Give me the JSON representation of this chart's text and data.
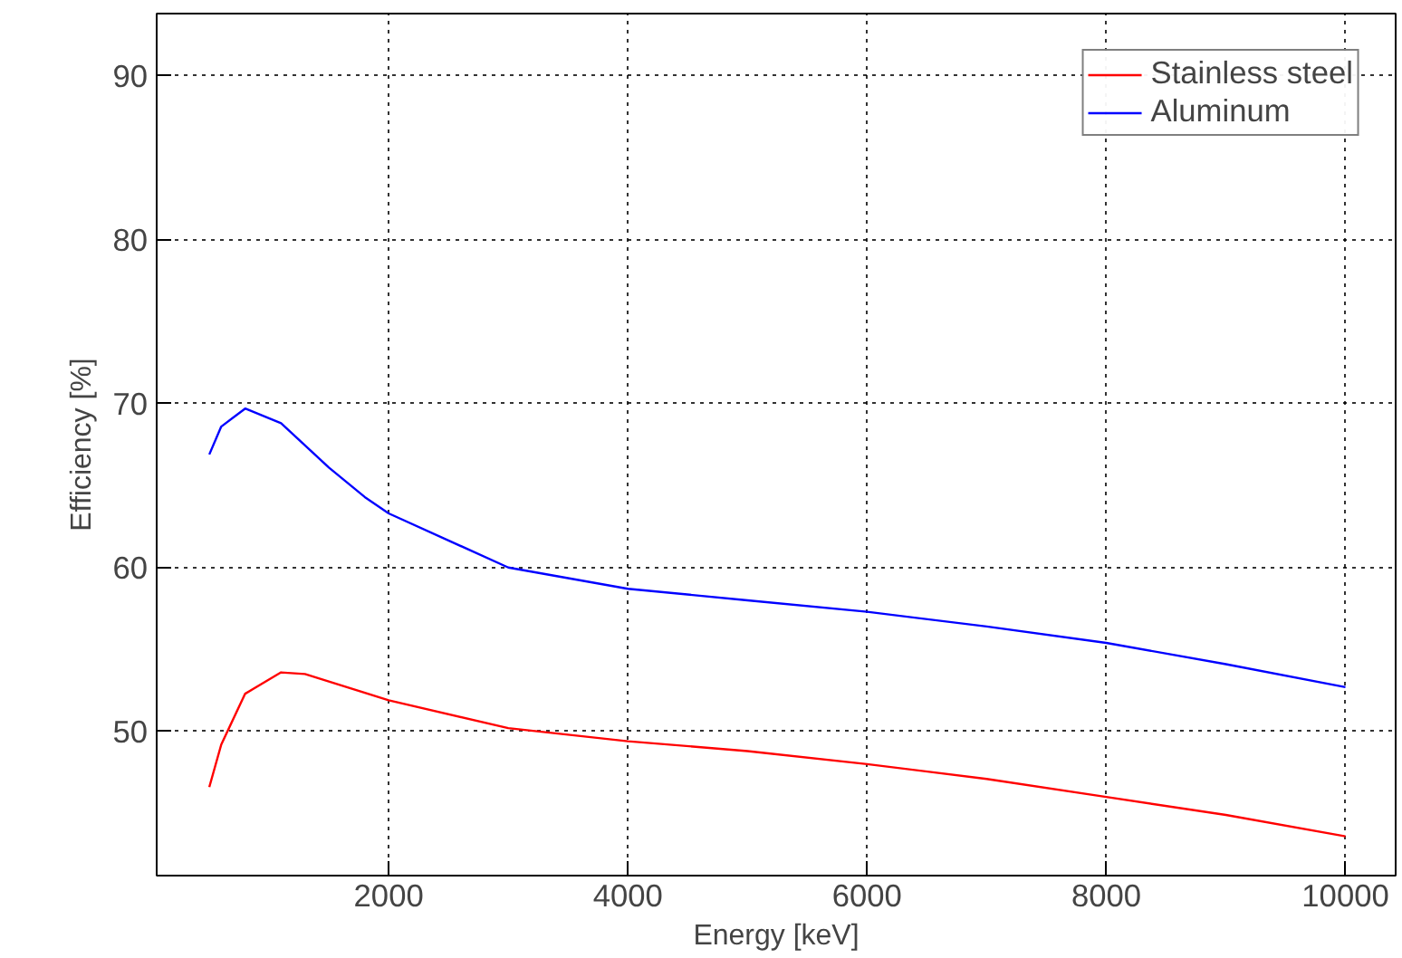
{
  "chart_data": {
    "type": "line",
    "xlabel": "Energy [keV]",
    "ylabel": "Efficiency [%]",
    "xlim": [
      60,
      10420
    ],
    "ylim": [
      41.2,
      93.8
    ],
    "xticks": [
      2000,
      4000,
      6000,
      8000,
      10000
    ],
    "yticks": [
      50,
      60,
      70,
      80,
      90
    ],
    "grid": true,
    "legend": "top right",
    "line_style": "solid",
    "marker": "none",
    "series": [
      {
        "name": "Stainless steel",
        "color": "#ff0000",
        "x": [
          500,
          600,
          800,
          1100,
          1300,
          2000,
          3000,
          4000,
          5000,
          6000,
          7000,
          8000,
          9000,
          10000
        ],
        "values": [
          46.6,
          49.2,
          52.3,
          53.6,
          53.5,
          51.9,
          50.2,
          49.4,
          48.8,
          48.0,
          47.1,
          46.0,
          44.9,
          43.6
        ]
      },
      {
        "name": "Aluminum",
        "color": "#0000ff",
        "x": [
          500,
          600,
          800,
          1100,
          1500,
          1800,
          2000,
          3000,
          4000,
          5000,
          6000,
          7000,
          8000,
          9000,
          10000
        ],
        "values": [
          66.9,
          68.6,
          69.7,
          68.8,
          66.1,
          64.3,
          63.3,
          60.0,
          58.7,
          58.0,
          57.3,
          56.4,
          55.4,
          54.1,
          52.7
        ]
      }
    ]
  }
}
